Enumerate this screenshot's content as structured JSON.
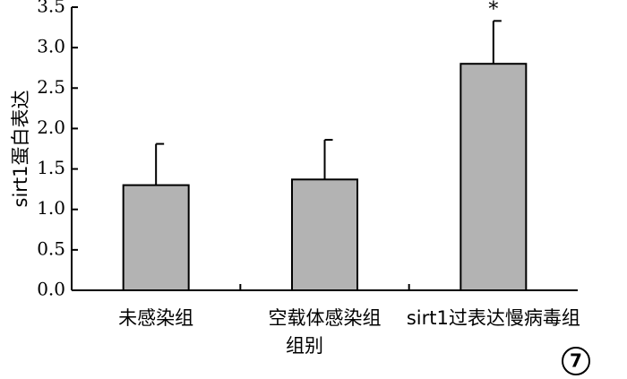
{
  "chart_data": {
    "type": "bar",
    "categories": [
      "未感染组",
      "空载体感染组",
      "sirt1过表达慢病毒组"
    ],
    "values": [
      1.3,
      1.37,
      2.8
    ],
    "error": [
      0.51,
      0.49,
      0.53
    ],
    "annotations": [
      "",
      "",
      "*"
    ],
    "ylim": [
      0,
      3.5
    ],
    "yticks": [
      "0.0",
      "0.5",
      "1.0",
      "1.5",
      "2.0",
      "2.5",
      "3.0",
      "3.5"
    ],
    "ylabel": "sirt1蛋白表达",
    "xlabel": "组别",
    "grid": false,
    "bar_color": "#b3b3b3"
  },
  "badge": {
    "text": "7"
  }
}
